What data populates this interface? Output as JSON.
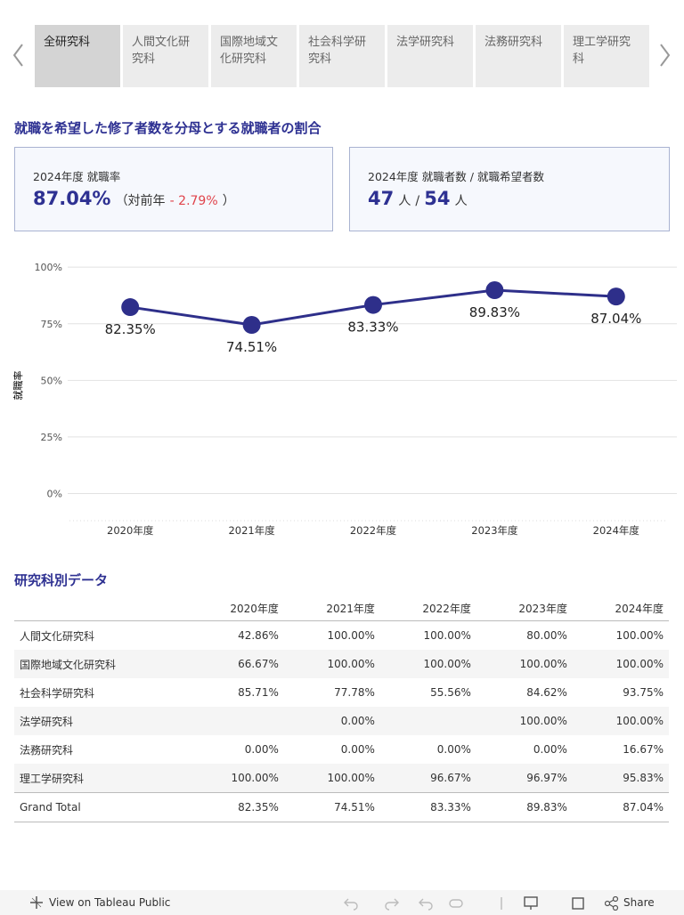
{
  "tabs": [
    "全研究科",
    "人間文化研究科",
    "国際地域文化研究科",
    "社会科学研究科",
    "法学研究科",
    "法務研究科",
    "理工学研究科"
  ],
  "heading": "就職を希望した修了者数を分母とする就職者の割合",
  "card_rate": {
    "label": "2024年度 就職率",
    "value": "87.04%",
    "prev_open": "（対前年",
    "prev_change": "- 2.79%",
    "prev_close": "）"
  },
  "card_count": {
    "label": "2024年度 就職者数 / 就職希望者数",
    "employed": "47",
    "unit1": "人",
    "slash": "/",
    "applicants": "54",
    "unit2": "人"
  },
  "chart_data": {
    "type": "line",
    "y_label": "就職率",
    "categories": [
      "2020年度",
      "2021年度",
      "2022年度",
      "2023年度",
      "2024年度"
    ],
    "values": [
      82.35,
      74.51,
      83.33,
      89.83,
      87.04
    ],
    "value_labels": [
      "82.35%",
      "74.51%",
      "83.33%",
      "89.83%",
      "87.04%"
    ],
    "color": "#2e2f8a",
    "ylim": [
      -12,
      104
    ],
    "yticks": [
      {
        "value": 0,
        "label": "0%"
      },
      {
        "value": 25,
        "label": "25%"
      },
      {
        "value": 50,
        "label": "50%"
      },
      {
        "value": 75,
        "label": "75%"
      },
      {
        "value": 100,
        "label": "100%"
      }
    ],
    "grid": true
  },
  "table": {
    "title": "研究科別データ",
    "columns": [
      "2020年度",
      "2021年度",
      "2022年度",
      "2023年度",
      "2024年度"
    ],
    "rows": [
      [
        "人間文化研究科",
        "42.86%",
        "100.00%",
        "100.00%",
        "80.00%",
        "100.00%"
      ],
      [
        "国際地域文化研究科",
        "66.67%",
        "100.00%",
        "100.00%",
        "100.00%",
        "100.00%"
      ],
      [
        "社会科学研究科",
        "85.71%",
        "77.78%",
        "55.56%",
        "84.62%",
        "93.75%"
      ],
      [
        "法学研究科",
        null,
        "0.00%",
        null,
        "100.00%",
        "100.00%"
      ],
      [
        "法務研究科",
        "0.00%",
        "0.00%",
        "0.00%",
        "0.00%",
        "16.67%"
      ],
      [
        "理工学研究科",
        "100.00%",
        "100.00%",
        "96.67%",
        "96.97%",
        "95.83%"
      ],
      [
        "Grand Total",
        "82.35%",
        "74.51%",
        "83.33%",
        "89.83%",
        "87.04%"
      ]
    ]
  },
  "footer": {
    "view": "View on Tableau Public",
    "share": "Share"
  }
}
